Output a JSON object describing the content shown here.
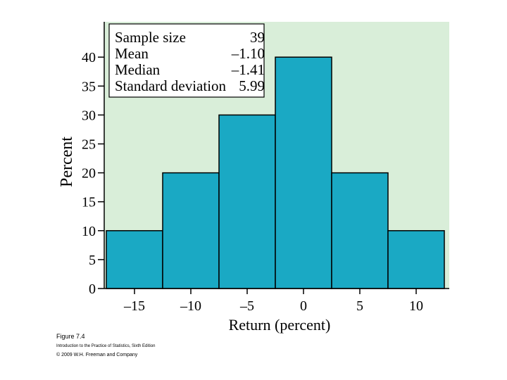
{
  "chart_data": {
    "type": "bar",
    "categories": [
      "-15",
      "-10",
      "-5",
      "0",
      "5",
      "10"
    ],
    "values": [
      10,
      20,
      30,
      40,
      20,
      10
    ],
    "xlabel": "Return (percent)",
    "ylabel": "Percent",
    "ylim": [
      0,
      45
    ],
    "yticks": [
      "0",
      "5",
      "10",
      "15",
      "20",
      "25",
      "30",
      "35",
      "40"
    ],
    "xticks": [
      "–15",
      "–10",
      "–5",
      "0",
      "5",
      "10"
    ],
    "grid": false,
    "stats_box": {
      "rows": [
        {
          "label": "Sample size",
          "value": "39"
        },
        {
          "label": "Mean",
          "value": "–1.10"
        },
        {
          "label": "Median",
          "value": "–1.41"
        },
        {
          "label": "Standard deviation",
          "value": "5.99"
        }
      ],
      "placement": "top-left"
    },
    "colors": {
      "plot_background": "#d9eed9",
      "bar_fill": "#1aa9c4",
      "bar_edge": "#000000"
    }
  },
  "captions": {
    "figure": "Figure 7.4",
    "book": "Introduction to the Practice of Statistics, Sixth Edition",
    "copyright": "© 2009 W.H. Freeman and Company"
  }
}
